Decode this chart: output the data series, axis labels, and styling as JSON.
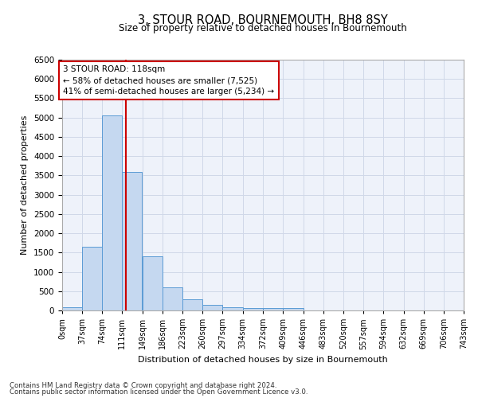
{
  "title": "3, STOUR ROAD, BOURNEMOUTH, BH8 8SY",
  "subtitle": "Size of property relative to detached houses in Bournemouth",
  "xlabel": "Distribution of detached houses by size in Bournemouth",
  "ylabel": "Number of detached properties",
  "footer_line1": "Contains HM Land Registry data © Crown copyright and database right 2024.",
  "footer_line2": "Contains public sector information licensed under the Open Government Licence v3.0.",
  "bin_edges": [
    0,
    37,
    74,
    111,
    149,
    186,
    223,
    260,
    297,
    334,
    372,
    409,
    446,
    483,
    520,
    557,
    594,
    632,
    669,
    706,
    743
  ],
  "bin_labels": [
    "0sqm",
    "37sqm",
    "74sqm",
    "111sqm",
    "149sqm",
    "186sqm",
    "223sqm",
    "260sqm",
    "297sqm",
    "334sqm",
    "372sqm",
    "409sqm",
    "446sqm",
    "483sqm",
    "520sqm",
    "557sqm",
    "594sqm",
    "632sqm",
    "669sqm",
    "706sqm",
    "743sqm"
  ],
  "bar_values": [
    75,
    1650,
    5050,
    3600,
    1400,
    600,
    290,
    145,
    80,
    60,
    55,
    55,
    0,
    0,
    0,
    0,
    0,
    0,
    0,
    0
  ],
  "bar_color": "#c5d8f0",
  "bar_edge_color": "#5b9bd5",
  "grid_color": "#d0d8e8",
  "property_size": 118,
  "red_line_color": "#cc0000",
  "annotation_text": "3 STOUR ROAD: 118sqm\n← 58% of detached houses are smaller (7,525)\n41% of semi-detached houses are larger (5,234) →",
  "annotation_box_color": "#ffffff",
  "annotation_box_edge": "#cc0000",
  "ylim": [
    0,
    6500
  ],
  "yticks": [
    0,
    500,
    1000,
    1500,
    2000,
    2500,
    3000,
    3500,
    4000,
    4500,
    5000,
    5500,
    6000,
    6500
  ],
  "bg_color": "#ffffff",
  "plot_bg_color": "#eef2fa"
}
